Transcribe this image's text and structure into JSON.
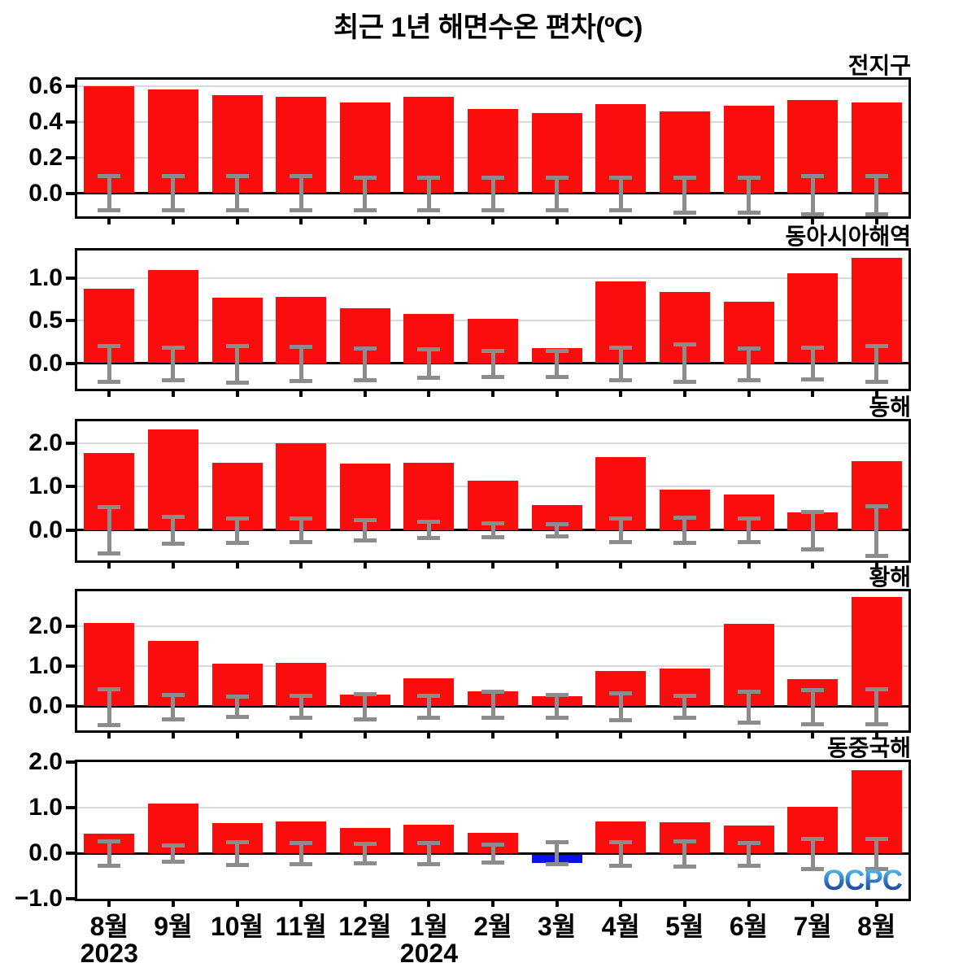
{
  "title": "최근 1년 해면수온 편차(ºC)",
  "logo_text": "OCPC",
  "colors": {
    "bar_positive": "#fc0d0d",
    "bar_negative": "#0a10ee",
    "error_bar": "#8c8c8c",
    "gridline": "#d9d9d9",
    "axis": "#000000"
  },
  "x_axis": {
    "months": [
      "8월",
      "9월",
      "10월",
      "11월",
      "12월",
      "1월",
      "2월",
      "3월",
      "4월",
      "5월",
      "6월",
      "7월",
      "8월"
    ],
    "year_labels": [
      {
        "text": "2023",
        "month_index": 0
      },
      {
        "text": "2024",
        "month_index": 5
      }
    ]
  },
  "chart_data": [
    {
      "type": "bar",
      "region": "전지구",
      "categories": [
        "8월",
        "9월",
        "10월",
        "11월",
        "12월",
        "1월",
        "2월",
        "3월",
        "4월",
        "5월",
        "6월",
        "7월",
        "8월"
      ],
      "values": [
        0.6,
        0.58,
        0.55,
        0.54,
        0.51,
        0.54,
        0.47,
        0.45,
        0.5,
        0.46,
        0.49,
        0.52,
        0.51
      ],
      "error_high": [
        0.1,
        0.1,
        0.1,
        0.1,
        0.09,
        0.09,
        0.09,
        0.09,
        0.09,
        0.09,
        0.09,
        0.1,
        0.1
      ],
      "error_low": [
        -0.1,
        -0.1,
        -0.1,
        -0.1,
        -0.1,
        -0.1,
        -0.1,
        -0.1,
        -0.1,
        -0.11,
        -0.11,
        -0.12,
        -0.12
      ],
      "tick_values": [
        0.6,
        0.4,
        0.2,
        0.0
      ],
      "tick_labels": [
        "0.6",
        "0.4",
        "0.2",
        "0.0"
      ],
      "ylim": [
        -0.13,
        0.636
      ],
      "grid": true,
      "legend": "none"
    },
    {
      "type": "bar",
      "region": "동아시아해역",
      "categories": [
        "8월",
        "9월",
        "10월",
        "11월",
        "12월",
        "1월",
        "2월",
        "3월",
        "4월",
        "5월",
        "6월",
        "7월",
        "8월"
      ],
      "values": [
        0.87,
        1.09,
        0.77,
        0.78,
        0.64,
        0.58,
        0.52,
        0.18,
        0.96,
        0.83,
        0.72,
        1.05,
        1.23
      ],
      "error_high": [
        0.21,
        0.19,
        0.21,
        0.2,
        0.18,
        0.17,
        0.15,
        0.15,
        0.19,
        0.22,
        0.18,
        0.19,
        0.21
      ],
      "error_low": [
        -0.22,
        -0.2,
        -0.23,
        -0.21,
        -0.2,
        -0.18,
        -0.17,
        -0.17,
        -0.2,
        -0.22,
        -0.2,
        -0.19,
        -0.22
      ],
      "tick_values": [
        1.0,
        0.5,
        0.0
      ],
      "tick_labels": [
        "1.0",
        "0.5",
        "0.0"
      ],
      "ylim": [
        -0.3,
        1.32
      ],
      "grid": true,
      "legend": "none"
    },
    {
      "type": "bar",
      "region": "동해",
      "categories": [
        "8월",
        "9월",
        "10월",
        "11월",
        "12월",
        "1월",
        "2월",
        "3월",
        "4월",
        "5월",
        "6월",
        "7월",
        "8월"
      ],
      "values": [
        1.77,
        2.32,
        1.55,
        2.0,
        1.52,
        1.55,
        1.13,
        0.57,
        1.67,
        0.93,
        0.82,
        0.4,
        1.58
      ],
      "error_high": [
        0.53,
        0.32,
        0.28,
        0.27,
        0.24,
        0.19,
        0.17,
        0.14,
        0.27,
        0.29,
        0.27,
        0.42,
        0.55
      ],
      "error_low": [
        -0.55,
        -0.33,
        -0.3,
        -0.28,
        -0.25,
        -0.2,
        -0.18,
        -0.15,
        -0.28,
        -0.3,
        -0.28,
        -0.45,
        -0.6
      ],
      "tick_values": [
        2.0,
        1.0,
        0.0
      ],
      "tick_labels": [
        "2.0",
        "1.0",
        "0.0"
      ],
      "ylim": [
        -0.7,
        2.5
      ],
      "grid": true,
      "legend": "none"
    },
    {
      "type": "bar",
      "region": "황해",
      "categories": [
        "8월",
        "9월",
        "10월",
        "11월",
        "12월",
        "1월",
        "2월",
        "3월",
        "4월",
        "5월",
        "6월",
        "7월",
        "8월"
      ],
      "values": [
        2.07,
        1.63,
        1.07,
        1.08,
        0.3,
        0.69,
        0.37,
        0.26,
        0.87,
        0.93,
        2.06,
        0.67,
        2.72
      ],
      "error_high": [
        0.44,
        0.3,
        0.26,
        0.28,
        0.32,
        0.28,
        0.38,
        0.3,
        0.33,
        0.28,
        0.38,
        0.42,
        0.44
      ],
      "error_low": [
        -0.48,
        -0.33,
        -0.28,
        -0.3,
        -0.33,
        -0.3,
        -0.3,
        -0.3,
        -0.35,
        -0.3,
        -0.42,
        -0.45,
        -0.45
      ],
      "tick_values": [
        2.0,
        1.0,
        0.0
      ],
      "tick_labels": [
        "2.0",
        "1.0",
        "0.0"
      ],
      "ylim": [
        -0.6,
        2.86
      ],
      "grid": true,
      "legend": "none"
    },
    {
      "type": "bar",
      "region": "동중국해",
      "categories": [
        "8월",
        "9월",
        "10월",
        "11월",
        "12월",
        "1월",
        "2월",
        "3월",
        "4월",
        "5월",
        "6월",
        "7월",
        "8월"
      ],
      "values": [
        0.43,
        1.09,
        0.67,
        0.69,
        0.55,
        0.62,
        0.45,
        -0.18,
        0.7,
        0.68,
        0.6,
        1.01,
        1.83
      ],
      "error_high": [
        0.27,
        0.18,
        0.25,
        0.23,
        0.21,
        0.23,
        0.2,
        0.25,
        0.25,
        0.27,
        0.23,
        0.33,
        0.33
      ],
      "error_low": [
        -0.28,
        -0.19,
        -0.27,
        -0.25,
        -0.23,
        -0.25,
        -0.22,
        -0.25,
        -0.28,
        -0.3,
        -0.28,
        -0.35,
        -0.35
      ],
      "tick_values": [
        2.0,
        1.0,
        0.0,
        -1.0
      ],
      "tick_labels": [
        "2.0",
        "1.0",
        "0.0",
        "−1.0"
      ],
      "ylim": [
        -1.0,
        2.0
      ],
      "grid": true,
      "legend": "none"
    }
  ]
}
